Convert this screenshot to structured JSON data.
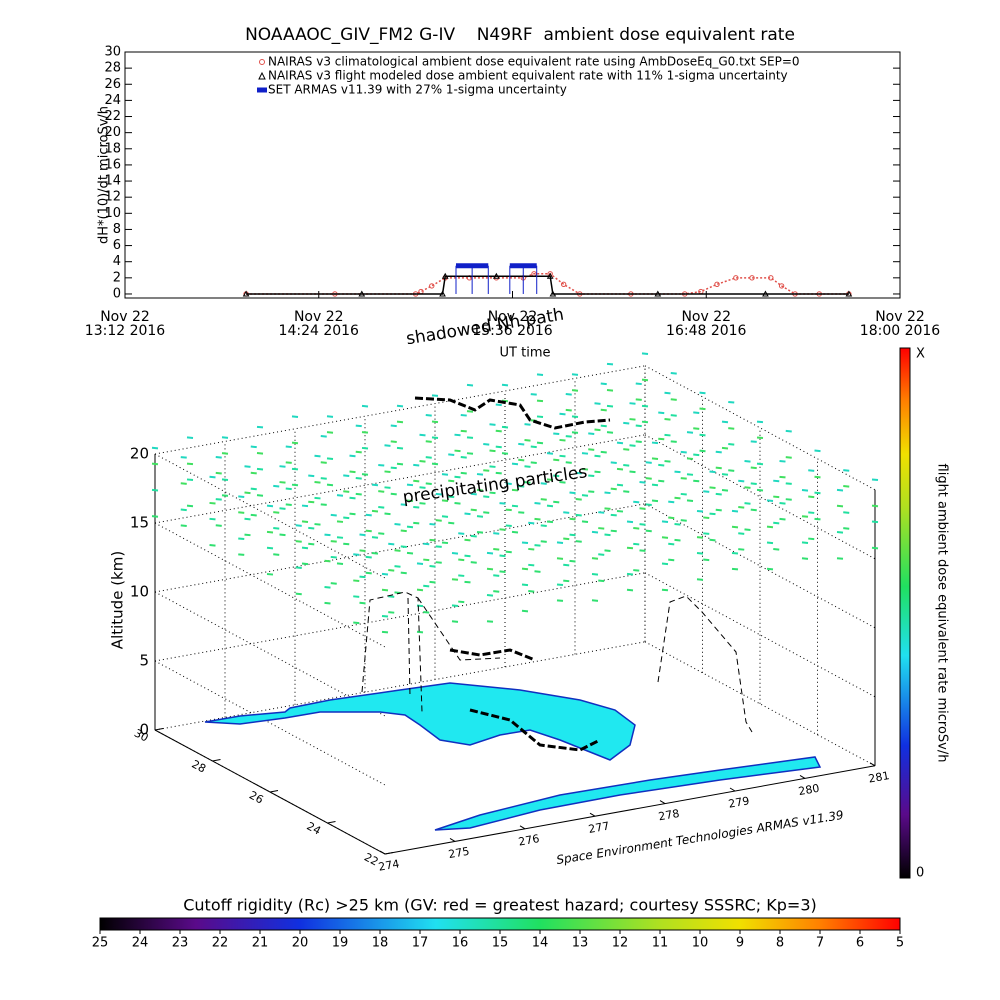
{
  "chart_data": [
    {
      "type": "line",
      "title": "NOAAAOC_GIV_FM2 G-IV    N49RF  ambient dose equivalent rate",
      "y_label": "dH*(10)/dt microSv/h",
      "x_label": "UT time",
      "annotations": [
        "shadowed Nh path"
      ],
      "xlim": [
        "2016-11-22 13:12",
        "2016-11-22 18:00"
      ],
      "xticks": [
        {
          "value": "2016-11-22 13:12",
          "label": [
            "Nov 22",
            "13:12 2016"
          ]
        },
        {
          "value": "2016-11-22 14:24",
          "label": [
            "Nov 22",
            "14:24 2016"
          ]
        },
        {
          "value": "2016-11-22 15:36",
          "label": [
            "Nov 22",
            "15:36 2016"
          ]
        },
        {
          "value": "2016-11-22 16:48",
          "label": [
            "Nov 22",
            "16:48 2016"
          ]
        },
        {
          "value": "2016-11-22 18:00",
          "label": [
            "Nov 22",
            "18:00 2016"
          ]
        }
      ],
      "ylim": [
        -0.5,
        30
      ],
      "yticks": [
        0,
        2,
        4,
        6,
        8,
        10,
        12,
        14,
        16,
        18,
        20,
        22,
        24,
        26,
        28,
        30
      ],
      "series": [
        {
          "name": "NAIRAS v3 climatological ambient dose equivalent rate using AmbDoseEq_G0.txt SEP=0",
          "color": "#e0504a",
          "x": [
            "2016-11-22 13:57",
            "2016-11-22 14:30",
            "2016-11-22 15:00",
            "2016-11-22 15:02",
            "2016-11-22 15:06",
            "2016-11-22 15:11",
            "2016-11-22 15:20",
            "2016-11-22 15:30",
            "2016-11-22 15:40",
            "2016-11-22 15:44",
            "2016-11-22 15:50",
            "2016-11-22 15:55",
            "2016-11-22 16:01",
            "2016-11-22 16:20",
            "2016-11-22 16:40",
            "2016-11-22 16:46",
            "2016-11-22 16:52",
            "2016-11-22 16:59",
            "2016-11-22 17:05",
            "2016-11-22 17:12",
            "2016-11-22 17:16",
            "2016-11-22 17:21",
            "2016-11-22 17:30",
            "2016-11-22 17:41"
          ],
          "values": [
            0,
            0,
            0,
            0.3,
            1,
            2,
            2,
            2,
            2,
            2.5,
            2.5,
            1.2,
            0,
            0,
            0,
            0.3,
            1.2,
            2,
            2,
            2,
            1,
            0,
            0,
            0
          ]
        },
        {
          "name": "NAIRAS v3 flight modeled dose ambient equivalent rate with 11% 1-sigma uncertainty",
          "color": "#000000",
          "x": [
            "2016-11-22 13:57",
            "2016-11-22 14:40",
            "2016-11-22 15:10",
            "2016-11-22 15:11",
            "2016-11-22 15:30",
            "2016-11-22 15:50",
            "2016-11-22 15:51",
            "2016-11-22 16:30",
            "2016-11-22 17:10",
            "2016-11-22 17:41"
          ],
          "values": [
            0,
            0,
            0,
            2.2,
            2.2,
            2.2,
            0,
            0,
            0,
            0
          ]
        },
        {
          "name": "SET ARMAS v11.39 with 27% 1-sigma uncertainty",
          "color": "#1020c8",
          "x": [
            "2016-11-22 15:15",
            "2016-11-22 15:21",
            "2016-11-22 15:27",
            "2016-11-22 15:31",
            "2016-11-22 15:35",
            "2016-11-22 15:40",
            "2016-11-22 15:45"
          ],
          "values": [
            3.5,
            3.5,
            3.5,
            null,
            3.5,
            3.5,
            3.5
          ]
        }
      ]
    },
    {
      "type": "scatter3d",
      "annotations": [
        "precipitating particles",
        "Space Environment Technologies ARMAS v11.39"
      ],
      "z_label": "Altitude (km)",
      "zlim": [
        0,
        20
      ],
      "zticks": [
        0,
        5,
        10,
        15,
        20
      ],
      "lat_ticks": [
        30,
        28,
        26,
        24,
        22
      ],
      "lon_ticks": [
        274,
        275,
        276,
        277,
        278,
        279,
        280,
        281
      ],
      "colorbar": {
        "label": "flight ambient dose equivalent rate microSv/h",
        "tick_labels": [
          "X",
          "0"
        ]
      }
    },
    {
      "type": "colorbar",
      "title": "Cutoff rigidity (Rc) >25 km (GV: red = greatest hazard; courtesy SSSRC; Kp=3)",
      "xlim": [
        25,
        5
      ],
      "xticks": [
        25,
        24,
        23,
        22,
        21,
        20,
        19,
        18,
        17,
        16,
        15,
        14,
        13,
        12,
        11,
        10,
        9,
        8,
        7,
        6,
        5
      ]
    }
  ]
}
